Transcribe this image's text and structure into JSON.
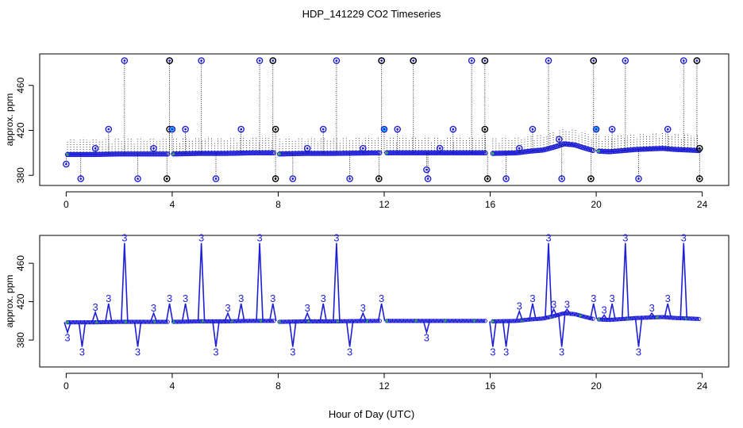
{
  "figure": {
    "title": "HDP_141229  CO2 Timeseries",
    "xlabel": "Hour of Day (UTC)"
  },
  "colors": {
    "frame": "#000000",
    "points": "#1f1fd6",
    "highlight": "#2ec7e8",
    "green": "#22b14c",
    "flagged": "#000000",
    "whisker": "#000000"
  },
  "chart_data": [
    {
      "type": "scatter",
      "panel": "top",
      "ylabel": "approx. ppm",
      "xlim": [
        -1,
        25
      ],
      "ylim": [
        371,
        488
      ],
      "x_ticks": [
        0,
        4,
        8,
        12,
        16,
        20,
        24
      ],
      "y_ticks": [
        380,
        420,
        460
      ],
      "grid": false,
      "legend": "none",
      "series": [
        {
          "role": "baseline",
          "segments": [
            {
              "x": [
                0.05,
                1.0,
                2.0,
                3.0,
                3.85
              ],
              "y": [
                398.5,
                398.5,
                399.0,
                399.0,
                399.0
              ]
            },
            {
              "x": [
                4.05,
                5.0,
                6.0,
                7.0,
                7.85
              ],
              "y": [
                399.0,
                399.5,
                399.5,
                400.0,
                400.0
              ]
            },
            {
              "x": [
                8.05,
                9.0,
                10.0,
                11.0,
                11.85
              ],
              "y": [
                399.0,
                399.5,
                399.5,
                399.8,
                400.0
              ]
            },
            {
              "x": [
                12.1,
                13.0,
                14.0,
                15.0,
                15.85
              ],
              "y": [
                400.0,
                400.0,
                400.0,
                400.0,
                400.0
              ]
            },
            {
              "x": [
                16.1,
                17.0,
                17.5,
                18.0,
                18.4,
                18.8,
                19.2,
                19.6,
                19.9
              ],
              "y": [
                399.5,
                400.0,
                401.5,
                402.5,
                405.0,
                408.0,
                407.0,
                404.0,
                402.0
              ]
            },
            {
              "x": [
                20.1,
                20.5,
                21.0,
                21.5,
                22.0,
                22.5,
                23.0,
                23.5,
                23.9
              ],
              "y": [
                401.5,
                401.0,
                402.0,
                403.0,
                403.5,
                404.0,
                403.0,
                402.5,
                402.0
              ]
            }
          ]
        },
        {
          "role": "high-spikes",
          "x": [
            2.2,
            3.9,
            5.1,
            7.3,
            7.8,
            10.2,
            11.9,
            13.1,
            15.3,
            15.8,
            18.2,
            19.9,
            21.1,
            23.3,
            23.8
          ],
          "y": [
            482,
            482,
            482,
            482,
            482,
            482,
            482,
            482,
            482,
            482,
            482,
            482,
            482,
            482,
            482
          ]
        },
        {
          "role": "mid-spikes",
          "x": [
            1.1,
            1.6,
            3.3,
            3.9,
            4.0,
            4.5,
            6.6,
            7.9,
            9.1,
            9.7,
            11.2,
            12.0,
            12.5,
            14.1,
            14.6,
            15.8,
            17.1,
            17.6,
            18.6,
            20.0,
            20.6,
            22.7,
            23.9
          ],
          "y": [
            404,
            421,
            404,
            421,
            421,
            421,
            421,
            421,
            404,
            421,
            404,
            421,
            421,
            404,
            421,
            421,
            404,
            421,
            412,
            421,
            421,
            421,
            404
          ]
        },
        {
          "role": "low-dips",
          "x": [
            0.0,
            0.55,
            2.7,
            3.8,
            5.65,
            7.9,
            8.55,
            10.7,
            11.8,
            13.6,
            13.65,
            15.9,
            16.6,
            18.7,
            19.8,
            21.6,
            23.9
          ],
          "y": [
            390,
            377,
            377,
            377,
            377,
            377,
            377,
            377,
            377,
            385,
            377,
            377,
            377,
            377,
            377,
            377,
            377
          ]
        }
      ]
    },
    {
      "type": "line",
      "panel": "bottom",
      "ylabel": "approx. ppm",
      "xlim": [
        -1,
        25
      ],
      "ylim": [
        352,
        489
      ],
      "x_ticks": [
        0,
        4,
        8,
        12,
        16,
        20,
        24
      ],
      "y_ticks": [
        380,
        420,
        460
      ],
      "grid": false,
      "legend": "none",
      "point_label": "3",
      "peaks": {
        "x": [
          0.05,
          0.6,
          1.1,
          1.6,
          2.2,
          2.7,
          3.3,
          3.9,
          4.5,
          5.1,
          5.65,
          6.1,
          6.6,
          7.3,
          7.8,
          8.55,
          9.1,
          9.7,
          10.2,
          10.7,
          11.2,
          11.9,
          13.6,
          16.1,
          16.6,
          17.1,
          17.6,
          18.2,
          18.4,
          18.7,
          18.9,
          19.9,
          20.3,
          20.6,
          21.1,
          21.6,
          22.1,
          22.7,
          23.3
        ],
        "y": [
          388,
          373,
          409,
          418,
          481,
          373,
          408,
          418,
          418,
          481,
          373,
          408,
          418,
          481,
          418,
          373,
          408,
          418,
          481,
          373,
          408,
          418,
          388,
          373,
          373,
          410,
          418,
          481,
          412,
          373,
          412,
          418,
          406,
          418,
          481,
          373,
          408,
          418,
          481
        ]
      }
    }
  ]
}
